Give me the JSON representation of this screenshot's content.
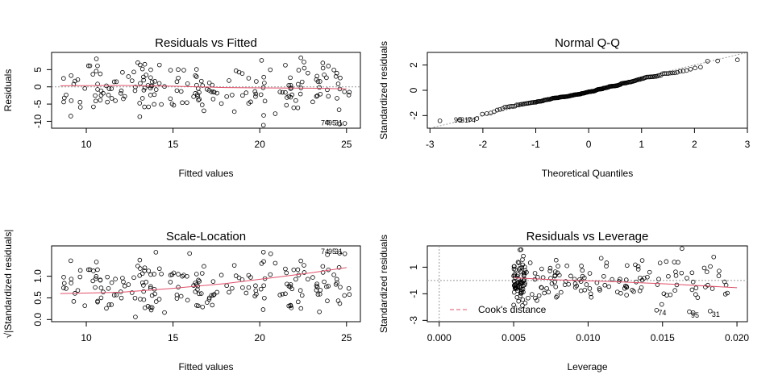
{
  "chart_data": [
    {
      "type": "scatter",
      "title": "Residuals vs Fitted",
      "xlabel": "Fitted values",
      "ylabel": "Residuals",
      "xlim": [
        8.0,
        25.8
      ],
      "ylim": [
        -12,
        10
      ],
      "xticks": [
        "10",
        "15",
        "20",
        "25"
      ],
      "yticks": [
        "-10",
        "-5",
        "0",
        "5"
      ],
      "reference_line": 0,
      "smooth": [
        [
          8.5,
          0.3
        ],
        [
          12,
          0.4
        ],
        [
          15,
          0.2
        ],
        [
          18,
          -0.2
        ],
        [
          20,
          -0.3
        ],
        [
          23,
          -0.4
        ],
        [
          25,
          -0.6
        ]
      ],
      "point_labels": [
        "74",
        "95",
        "31"
      ],
      "colors": {
        "points": "#000000",
        "smooth": "#e0506a",
        "reference": "#999999"
      }
    },
    {
      "type": "scatter",
      "title": "Normal Q-Q",
      "xlabel": "Theoretical Quantiles",
      "ylabel": "Standardized residuals",
      "xlim": [
        -3.05,
        3.0
      ],
      "ylim": [
        -3.0,
        3.0
      ],
      "xticks": [
        "-3",
        "-2",
        "-1",
        "0",
        "1",
        "2",
        "3"
      ],
      "yticks": [
        "-2",
        "0",
        "2"
      ],
      "reference_line": "y = x",
      "point_labels": [
        "95",
        "31",
        "74"
      ],
      "colors": {
        "points": "#000000",
        "reference": "#999999"
      }
    },
    {
      "type": "scatter",
      "title": "Scale-Location",
      "xlabel": "Fitted values",
      "ylabel": "√|Standardized residuals|",
      "xlim": [
        8.0,
        25.8
      ],
      "ylim": [
        -0.05,
        1.7
      ],
      "xticks": [
        "10",
        "15",
        "20",
        "25"
      ],
      "yticks": [
        "0.0",
        "0.5",
        "1.0"
      ],
      "smooth": [
        [
          8.5,
          0.6
        ],
        [
          12,
          0.63
        ],
        [
          15,
          0.72
        ],
        [
          18,
          0.83
        ],
        [
          21,
          0.98
        ],
        [
          23,
          1.08
        ],
        [
          25,
          1.2
        ]
      ],
      "point_labels": [
        "74",
        "95",
        "31"
      ],
      "colors": {
        "points": "#000000",
        "smooth": "#e0506a"
      }
    },
    {
      "type": "scatter",
      "title": "Residuals vs Leverage",
      "xlabel": "Leverage",
      "ylabel": "Standardized residuals",
      "xlim": [
        -0.0008,
        0.0207
      ],
      "ylim": [
        -3.1,
        2.6
      ],
      "xticks": [
        "0.000",
        "0.005",
        "0.010",
        "0.015",
        "0.020"
      ],
      "yticks": [
        "-3",
        "-1",
        "1"
      ],
      "reference_line": 0,
      "smooth": [
        [
          0.005,
          0.2
        ],
        [
          0.008,
          0.05
        ],
        [
          0.012,
          -0.1
        ],
        [
          0.016,
          -0.3
        ],
        [
          0.02,
          -0.55
        ]
      ],
      "legend": {
        "position": "bottom-left",
        "label": "Cook's distance"
      },
      "point_labels": [
        "74",
        "95",
        "31"
      ],
      "colors": {
        "points": "#000000",
        "smooth": "#e0506a",
        "reference": "#999999",
        "cooks": "#e0506a"
      }
    }
  ]
}
